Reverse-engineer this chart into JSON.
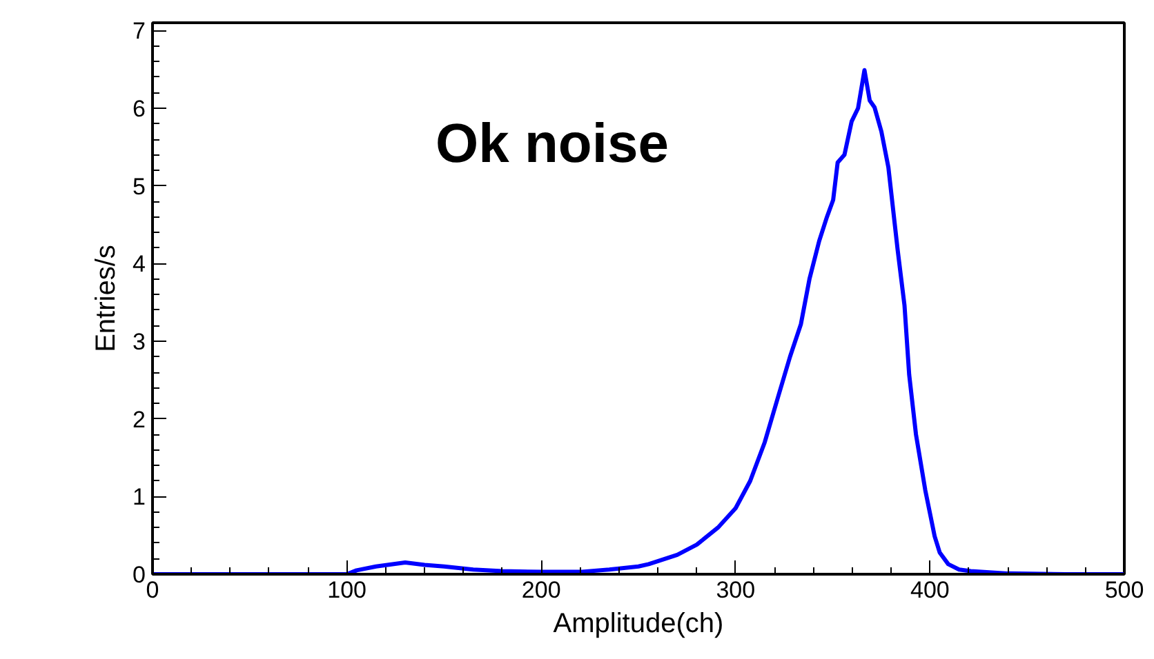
{
  "chart_data": {
    "type": "line",
    "xlabel": "Amplitude(ch)",
    "ylabel": "Entries/s",
    "annotations": [
      "Ok noise"
    ],
    "x": [
      0,
      50,
      100,
      105,
      115,
      130,
      140,
      150,
      165,
      180,
      200,
      220,
      235,
      250,
      255.3,
      270,
      280,
      290.9,
      300,
      307.5,
      315,
      321.7,
      328,
      333.6,
      338,
      343.0,
      347,
      350.2,
      352.5,
      356,
      359.7,
      363,
      366.3,
      369,
      371.5,
      375,
      378.6,
      383.4,
      386.9,
      389.3,
      392.8,
      397.6,
      402.4,
      405,
      409.4,
      415,
      421,
      440,
      470,
      500
    ],
    "series": [
      {
        "color": "#0000ff",
        "values": [
          0,
          0,
          0,
          0.05,
          0.1,
          0.15,
          0.12,
          0.1,
          0.06,
          0.04,
          0.03,
          0.03,
          0.06,
          0.1,
          0.13,
          0.25,
          0.38,
          0.6,
          0.85,
          1.2,
          1.7,
          2.27,
          2.8,
          3.22,
          3.8,
          4.29,
          4.6,
          4.82,
          5.3,
          5.4,
          5.83,
          6.0,
          6.49,
          6.1,
          6.01,
          5.7,
          5.24,
          4.17,
          3.46,
          2.57,
          1.8,
          1.08,
          0.49,
          0.28,
          0.13,
          0.06,
          0.04,
          0.01,
          0,
          0
        ]
      }
    ],
    "xlim": [
      0,
      500
    ],
    "ylim": [
      0,
      7.1
    ],
    "xticks": [
      0,
      100,
      200,
      300,
      400,
      500
    ],
    "yticks": [
      0,
      1,
      2,
      3,
      4,
      5,
      6,
      7
    ],
    "grid": false,
    "line_style": "solid",
    "marker": "none"
  }
}
